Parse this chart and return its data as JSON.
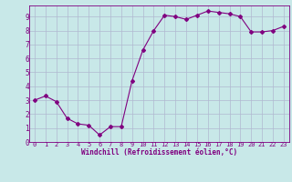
{
  "x": [
    0,
    1,
    2,
    3,
    4,
    5,
    6,
    7,
    8,
    9,
    10,
    11,
    12,
    13,
    14,
    15,
    16,
    17,
    18,
    19,
    20,
    21,
    22,
    23
  ],
  "y": [
    3.0,
    3.3,
    2.9,
    1.7,
    1.3,
    1.2,
    0.5,
    1.1,
    1.1,
    4.4,
    6.6,
    8.0,
    9.1,
    9.0,
    8.8,
    9.1,
    9.4,
    9.3,
    9.2,
    9.0,
    7.9,
    7.9,
    8.0,
    8.3
  ],
  "line_color": "#800080",
  "marker": "D",
  "marker_size": 2,
  "bg_color": "#c8e8e8",
  "grid_color": "#b0b8d0",
  "xlabel": "Windchill (Refroidissement éolien,°C)",
  "xlabel_color": "#800080",
  "tick_color": "#800080",
  "xlim": [
    -0.5,
    23.5
  ],
  "ylim": [
    0,
    9.8
  ],
  "yticks": [
    0,
    1,
    2,
    3,
    4,
    5,
    6,
    7,
    8,
    9
  ],
  "xticks": [
    0,
    1,
    2,
    3,
    4,
    5,
    6,
    7,
    8,
    9,
    10,
    11,
    12,
    13,
    14,
    15,
    16,
    17,
    18,
    19,
    20,
    21,
    22,
    23
  ]
}
